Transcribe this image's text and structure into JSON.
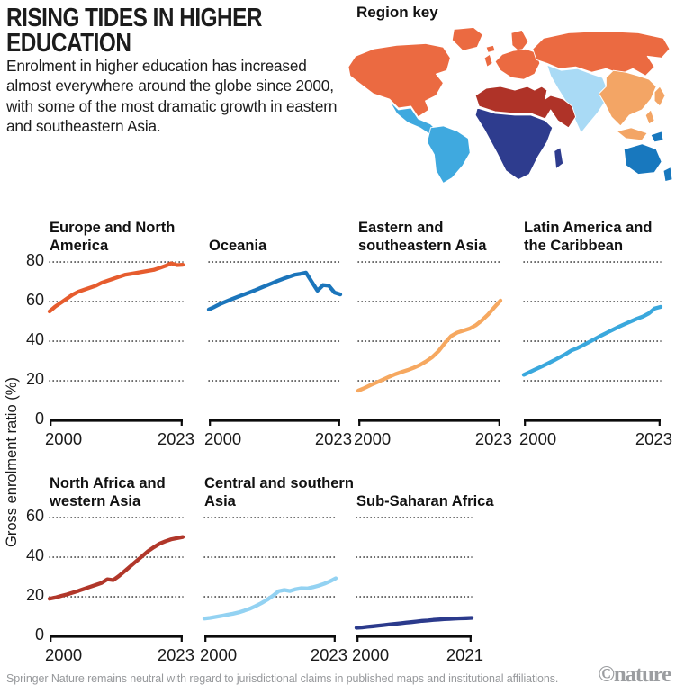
{
  "header": {
    "title_line1": "RISING TIDES IN HIGHER",
    "title_line2": "EDUCATION",
    "description": "Enrolment in higher education has increased almost everywhere around the globe since 2000, with some of the most dramatic growth in eastern and southeastern Asia."
  },
  "map": {
    "title": "Region key",
    "region_colors": {
      "europe-north-america": "#EB6A41",
      "oceania": "#1878BE",
      "eastern-southeastern-asia": "#F3A565",
      "latin-america-caribbean": "#3FA9DF",
      "north-africa-western-asia": "#AF3328",
      "central-southern-asia": "#A9DAF5",
      "sub-saharan-africa": "#2E3C8E"
    }
  },
  "axis": {
    "y_label": "Gross enrolment ratio (%)"
  },
  "chart_data": [
    {
      "type": "line",
      "title": "Europe and North America",
      "color": "#E65C2E",
      "xlim": [
        2000,
        2023
      ],
      "ylim": [
        0,
        80
      ],
      "yticks": [
        0,
        20,
        40,
        60,
        80
      ],
      "x_tick_labels": [
        "2000",
        "2023"
      ],
      "show_y_tick_labels": true,
      "x": [
        2000,
        2001,
        2002,
        2003,
        2004,
        2005,
        2006,
        2007,
        2008,
        2009,
        2010,
        2011,
        2012,
        2013,
        2014,
        2015,
        2016,
        2017,
        2018,
        2019,
        2020,
        2021,
        2022,
        2023
      ],
      "values": [
        55,
        57.5,
        59.5,
        61.5,
        63.5,
        65,
        66,
        67,
        68,
        69.5,
        70.5,
        71.5,
        72.5,
        73.5,
        74,
        74.5,
        75,
        75.5,
        76,
        77,
        78,
        79.3,
        78.4,
        78.6
      ]
    },
    {
      "type": "line",
      "title": "Oceania",
      "color": "#1B75BB",
      "xlim": [
        2000,
        2023
      ],
      "ylim": [
        0,
        80
      ],
      "yticks": [
        0,
        20,
        40,
        60,
        80
      ],
      "x_tick_labels": [
        "2000",
        "2023"
      ],
      "show_y_tick_labels": false,
      "x": [
        2000,
        2001,
        2002,
        2003,
        2004,
        2005,
        2006,
        2007,
        2008,
        2009,
        2010,
        2011,
        2012,
        2013,
        2014,
        2015,
        2016,
        2017,
        2018,
        2019,
        2020,
        2021,
        2022,
        2023
      ],
      "values": [
        56,
        57.3,
        58.8,
        60,
        61.2,
        62.3,
        63.4,
        64.5,
        65.6,
        66.8,
        68,
        69.2,
        70.4,
        71.5,
        72.5,
        73.5,
        74,
        74.6,
        70,
        65.5,
        68.3,
        68,
        64.5,
        63.6
      ]
    },
    {
      "type": "line",
      "title": "Eastern and southeastern Asia",
      "color": "#F6A860",
      "xlim": [
        2000,
        2023
      ],
      "ylim": [
        0,
        80
      ],
      "yticks": [
        0,
        20,
        40,
        60,
        80
      ],
      "x_tick_labels": [
        "2000",
        "2023"
      ],
      "show_y_tick_labels": false,
      "x": [
        2000,
        2001,
        2002,
        2003,
        2004,
        2005,
        2006,
        2007,
        2008,
        2009,
        2010,
        2011,
        2012,
        2013,
        2014,
        2015,
        2016,
        2017,
        2018,
        2019,
        2020,
        2021,
        2022,
        2023
      ],
      "values": [
        15,
        16.3,
        17.8,
        19.2,
        20.6,
        22,
        23.3,
        24.4,
        25.4,
        26.6,
        28,
        29.8,
        32,
        35,
        39,
        42.5,
        44.3,
        45.3,
        46.3,
        48,
        50.5,
        53.5,
        57,
        60.5
      ]
    },
    {
      "type": "line",
      "title": "Latin America and the Caribbean",
      "color": "#3AA8DD",
      "xlim": [
        2000,
        2023
      ],
      "ylim": [
        0,
        80
      ],
      "yticks": [
        0,
        20,
        40,
        60,
        80
      ],
      "x_tick_labels": [
        "2000",
        "2023"
      ],
      "show_y_tick_labels": false,
      "x": [
        2000,
        2001,
        2002,
        2003,
        2004,
        2005,
        2006,
        2007,
        2008,
        2009,
        2010,
        2011,
        2012,
        2013,
        2014,
        2015,
        2016,
        2017,
        2018,
        2019,
        2020,
        2021,
        2022,
        2023
      ],
      "values": [
        23,
        24.4,
        25.8,
        27.2,
        28.7,
        30.2,
        31.8,
        33.4,
        35.3,
        36.5,
        38,
        39.6,
        41.2,
        42.8,
        44.3,
        45.8,
        47.3,
        48.7,
        50,
        51.3,
        52.4,
        54,
        56.5,
        57.3
      ]
    },
    {
      "type": "line",
      "title": "North Africa and western Asia",
      "color": "#B1372A",
      "xlim": [
        2000,
        2023
      ],
      "ylim": [
        0,
        60
      ],
      "yticks": [
        0,
        20,
        40,
        60
      ],
      "x_tick_labels": [
        "2000",
        "2023"
      ],
      "show_y_tick_labels": true,
      "x": [
        2000,
        2001,
        2002,
        2003,
        2004,
        2005,
        2006,
        2007,
        2008,
        2009,
        2010,
        2011,
        2012,
        2013,
        2014,
        2015,
        2016,
        2017,
        2018,
        2019,
        2020,
        2021,
        2022,
        2023
      ],
      "values": [
        19,
        19.6,
        20.4,
        21.2,
        22.1,
        23,
        24,
        25,
        26,
        27,
        28.8,
        28.4,
        30.5,
        33,
        35.5,
        38,
        40.5,
        43,
        45,
        46.8,
        48,
        49,
        49.6,
        50.2
      ]
    },
    {
      "type": "line",
      "title": "Central and southern Asia",
      "color": "#93D2F2",
      "xlim": [
        2000,
        2023
      ],
      "ylim": [
        0,
        60
      ],
      "yticks": [
        0,
        20,
        40,
        60
      ],
      "x_tick_labels": [
        "2000",
        "2023"
      ],
      "show_y_tick_labels": false,
      "x": [
        2000,
        2001,
        2002,
        2003,
        2004,
        2005,
        2006,
        2007,
        2008,
        2009,
        2010,
        2011,
        2012,
        2013,
        2014,
        2015,
        2016,
        2017,
        2018,
        2019,
        2020,
        2021,
        2022,
        2023
      ],
      "values": [
        9,
        9.3,
        9.8,
        10.3,
        10.9,
        11.4,
        12.1,
        13,
        14,
        15.3,
        16.8,
        18.5,
        20.5,
        22.8,
        23.4,
        22.9,
        23.8,
        24.3,
        24.2,
        24.8,
        25.6,
        26.6,
        27.8,
        29.3
      ]
    },
    {
      "type": "line",
      "title": "Sub-Saharan Africa",
      "color": "#2B3A8C",
      "xlim": [
        2000,
        2021
      ],
      "ylim": [
        0,
        60
      ],
      "yticks": [
        0,
        20,
        40,
        60
      ],
      "x_tick_labels": [
        "2000",
        "2021"
      ],
      "show_y_tick_labels": false,
      "x": [
        2000,
        2001,
        2002,
        2003,
        2004,
        2005,
        2006,
        2007,
        2008,
        2009,
        2010,
        2011,
        2012,
        2013,
        2014,
        2015,
        2016,
        2017,
        2018,
        2019,
        2020,
        2021
      ],
      "values": [
        4.3,
        4.5,
        4.8,
        5.1,
        5.4,
        5.7,
        6,
        6.3,
        6.6,
        6.9,
        7.2,
        7.5,
        7.8,
        8,
        8.3,
        8.5,
        8.7,
        8.8,
        9,
        9.1,
        9.2,
        9.3
      ]
    }
  ],
  "footer": {
    "note": "Springer Nature remains neutral with regard to jurisdictional claims in published maps and institutional affiliations.",
    "credit": "©nature"
  }
}
